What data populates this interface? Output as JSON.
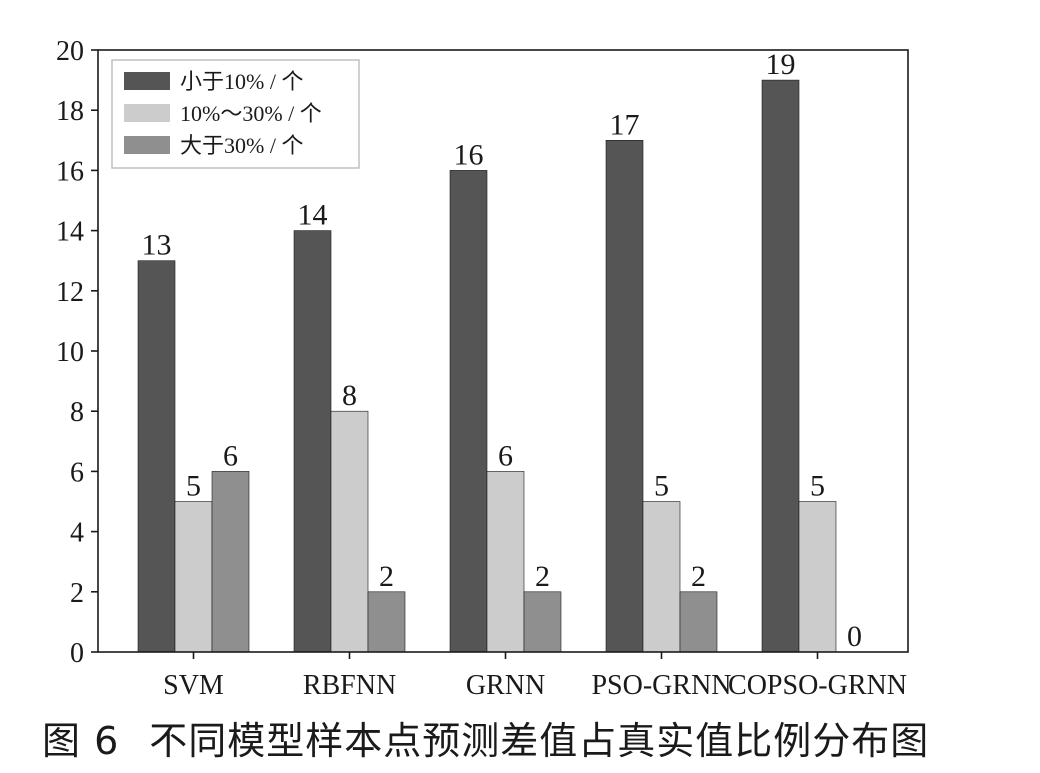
{
  "colors": {
    "series_lt10": "#555555",
    "series_10_30": "#cccccc",
    "series_gt30": "#8f8f8f",
    "axis": "#1a1a1a",
    "text": "#1a1a1a"
  },
  "caption": {
    "figure_number": "图 6",
    "text": "不同模型样本点预测差值占真实值比例分布图"
  },
  "chart_data": {
    "type": "bar",
    "title": "",
    "xlabel": "",
    "ylabel": "",
    "categories": [
      "SVM",
      "RBFNN",
      "GRNN",
      "PSO-GRNN",
      "COPSO-GRNN"
    ],
    "series": [
      {
        "name": "小于10% / 个",
        "values": [
          13,
          14,
          16,
          17,
          19
        ],
        "color": "#555555"
      },
      {
        "name": "10%～30% / 个",
        "values": [
          5,
          8,
          6,
          5,
          5
        ],
        "color": "#cccccc"
      },
      {
        "name": "大于30% / 个",
        "values": [
          6,
          2,
          2,
          2,
          0
        ],
        "color": "#8f8f8f"
      }
    ],
    "ylim": [
      0,
      20
    ],
    "yticks": [
      0,
      2,
      4,
      6,
      8,
      10,
      12,
      14,
      16,
      18,
      20
    ],
    "grid": false,
    "legend_position": "top-left",
    "data_labels": true
  }
}
